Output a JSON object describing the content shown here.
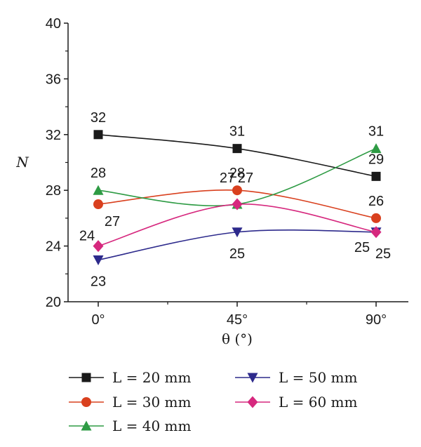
{
  "chart_data": {
    "type": "line",
    "title": "",
    "xlabel": "θ (°)",
    "ylabel": "N",
    "categories": [
      "0°",
      "45°",
      "90°"
    ],
    "ylim": [
      20,
      40
    ],
    "yticks": [
      20,
      24,
      28,
      32,
      36,
      40
    ],
    "grid": false,
    "legend_position": "bottom",
    "series": [
      {
        "name": "L = 20 mm",
        "values": [
          32,
          31,
          29
        ],
        "color": "#1a1a1a",
        "marker": "square"
      },
      {
        "name": "L = 30 mm",
        "values": [
          27,
          28,
          26
        ],
        "color": "#d9401e",
        "marker": "circle"
      },
      {
        "name": "L = 40 mm",
        "values": [
          28,
          27,
          31
        ],
        "color": "#2e9b44",
        "marker": "triangle-up"
      },
      {
        "name": "L = 50 mm",
        "values": [
          23,
          25,
          25
        ],
        "color": "#2d2a8c",
        "marker": "triangle-down"
      },
      {
        "name": "L = 60 mm",
        "values": [
          24,
          27,
          25
        ],
        "color": "#d6287e",
        "marker": "diamond"
      }
    ]
  }
}
